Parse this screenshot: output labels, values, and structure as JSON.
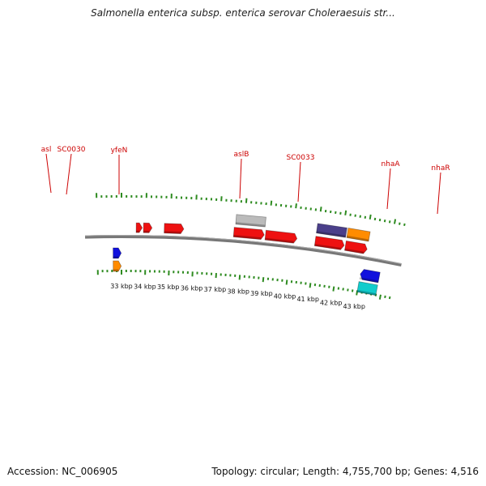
{
  "title": "Salmonella enterica subsp. enterica serovar Choleraesuis str...",
  "footer": {
    "accession": "Accession: NC_006905",
    "stats": "Topology: circular; Length: 4,755,700 bp; Genes: 4,516"
  },
  "colors": {
    "backbone": "#777777",
    "ticks": "#2e8b20",
    "label_text": "#cc0000",
    "label_line": "#cc0000",
    "red_gene": "#ee1111",
    "gray_gene": "#bbbbbb",
    "purple_gene": "#4a3f8a",
    "orange_gene": "#ff8c00",
    "blue_gene": "#1111dd",
    "cyan_gene": "#11cccc"
  },
  "kbp_labels": [
    "33 kbp",
    "34 kbp",
    "35 kbp",
    "36 kbp",
    "37 kbp",
    "38 kbp",
    "39 kbp",
    "40 kbp",
    "41 kbp",
    "42 kbp",
    "43 kbp"
  ],
  "gene_labels": [
    {
      "name": "asl",
      "kb": 33.8
    },
    {
      "name": "SC0030",
      "kb": 34.1
    },
    {
      "name": "yfeN",
      "kb": 35.2
    },
    {
      "name": "aslB",
      "kb": 37.9
    },
    {
      "name": "SC0033",
      "kb": 39.1
    },
    {
      "name": "nhaA",
      "kb": 41.4
    },
    {
      "name": "nhaR",
      "kb": 42.5
    }
  ],
  "genes": [
    {
      "name": "blue-left",
      "track": "rev1",
      "start": 32.65,
      "end": 32.99,
      "color": "blue",
      "dir": "fwd"
    },
    {
      "name": "orange-left",
      "track": "rev2",
      "start": 32.65,
      "end": 32.99,
      "color": "orange",
      "dir": "fwd"
    },
    {
      "name": "gene-1",
      "track": "fwd1",
      "start": 33.6,
      "end": 33.85,
      "color": "red",
      "dir": "fwd"
    },
    {
      "name": "gene-2",
      "track": "fwd1",
      "start": 33.9,
      "end": 34.25,
      "color": "red",
      "dir": "fwd"
    },
    {
      "name": "yfeN",
      "track": "fwd1",
      "start": 34.75,
      "end": 35.55,
      "color": "red",
      "dir": "fwd"
    },
    {
      "name": "aslB-gray",
      "track": "fwd2",
      "start": 37.65,
      "end": 38.85,
      "color": "gray",
      "dir": "none"
    },
    {
      "name": "aslB",
      "track": "fwd1",
      "start": 37.6,
      "end": 38.85,
      "color": "red",
      "dir": "fwd"
    },
    {
      "name": "SC0033",
      "track": "fwd1",
      "start": 38.9,
      "end": 40.2,
      "color": "red",
      "dir": "fwd"
    },
    {
      "name": "nhaA-purple",
      "track": "fwd2",
      "start": 40.95,
      "end": 42.15,
      "color": "purple",
      "dir": "none"
    },
    {
      "name": "nhaA",
      "track": "fwd1",
      "start": 40.95,
      "end": 42.15,
      "color": "red",
      "dir": "fwd"
    },
    {
      "name": "nhaR-orange",
      "track": "fwd2",
      "start": 42.2,
      "end": 43.1,
      "color": "orange",
      "dir": "none"
    },
    {
      "name": "nhaR",
      "track": "fwd1",
      "start": 42.2,
      "end": 43.1,
      "color": "red",
      "dir": "fwd"
    },
    {
      "name": "blue-right",
      "track": "rev1",
      "start": 43.0,
      "end": 43.8,
      "color": "blue",
      "dir": "rev"
    },
    {
      "name": "cyan-right",
      "track": "rev2",
      "start": 43.0,
      "end": 43.8,
      "color": "cyan",
      "dir": "none"
    }
  ]
}
